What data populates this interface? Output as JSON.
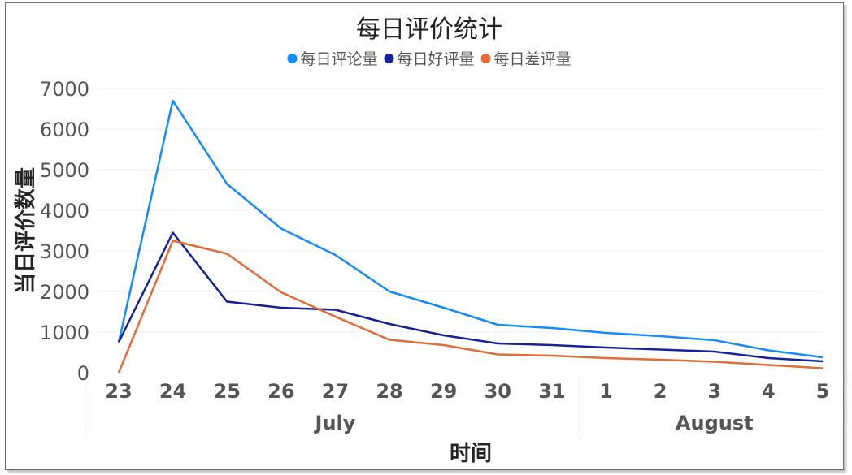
{
  "chart_data": {
    "type": "line",
    "title": "每日评价统计",
    "xlabel": "时间",
    "ylabel": "当日评价数量",
    "ylim": [
      0,
      7000
    ],
    "yticks": [
      0,
      1000,
      2000,
      3000,
      4000,
      5000,
      6000,
      7000
    ],
    "categories": [
      "23",
      "24",
      "25",
      "26",
      "27",
      "28",
      "29",
      "30",
      "31",
      "1",
      "2",
      "3",
      "4",
      "5"
    ],
    "groups": [
      {
        "label": "July",
        "start": 0,
        "end": 8
      },
      {
        "label": "August",
        "start": 9,
        "end": 13
      }
    ],
    "grid": true,
    "legend": "top-center",
    "series": [
      {
        "name": "每日评论量",
        "color": "#118DFF",
        "values": [
          750,
          6700,
          4650,
          3550,
          2900,
          2000,
          1600,
          1180,
          1100,
          980,
          900,
          800,
          550,
          380
        ]
      },
      {
        "name": "每日好评量",
        "color": "#12239E",
        "values": [
          750,
          3450,
          1750,
          1600,
          1550,
          1200,
          920,
          720,
          680,
          620,
          570,
          520,
          360,
          280
        ]
      },
      {
        "name": "每日差评量",
        "color": "#E66C37",
        "values": [
          0,
          3250,
          2930,
          1980,
          1380,
          810,
          680,
          450,
          420,
          360,
          320,
          270,
          190,
          110
        ]
      }
    ]
  }
}
